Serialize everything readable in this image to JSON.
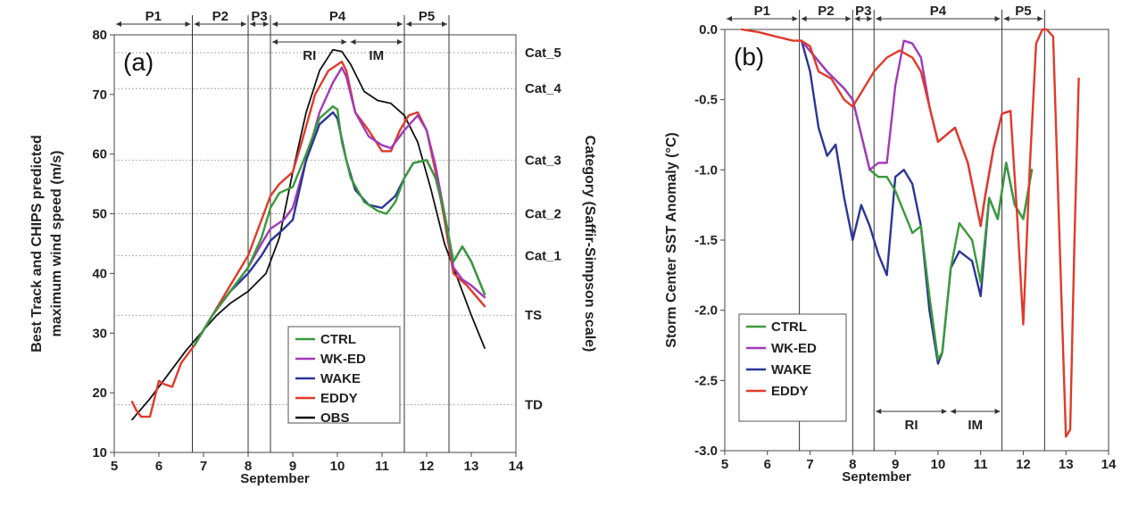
{
  "colors": {
    "CTRL": "#3a9a3a",
    "WK-ED": "#a23ab8",
    "WAKE": "#2c3596",
    "EDDY": "#e03a2a",
    "OBS": "#111111"
  },
  "chart_data": [
    {
      "type": "line",
      "panel_label": "(a)",
      "xlabel": "September",
      "ylabel": "Best Track and CHIPS predicted maximum wind speed (m/s)",
      "ylabel_lines": [
        "Best Track and CHIPS predicted",
        "maximum wind speed (m/s)"
      ],
      "right_label": "Category (Saffir-Simpson scale)",
      "xlim": [
        5,
        14
      ],
      "ylim": [
        10,
        80
      ],
      "xticks": [
        "5",
        "6",
        "7",
        "8",
        "9",
        "10",
        "11",
        "12",
        "13",
        "14"
      ],
      "yticks": [
        "10",
        "20",
        "30",
        "40",
        "50",
        "60",
        "70",
        "80"
      ],
      "categories": [
        {
          "label": "TD",
          "y": 18
        },
        {
          "label": "TS",
          "y": 33
        },
        {
          "label": "Cat_1",
          "y": 43
        },
        {
          "label": "Cat_2",
          "y": 50
        },
        {
          "label": "Cat_3",
          "y": 59
        },
        {
          "label": "Cat_4",
          "y": 71
        },
        {
          "label": "Cat_5",
          "y": 77
        }
      ],
      "phase_lines": [
        6.75,
        8.0,
        8.5,
        11.5,
        12.5
      ],
      "phases": [
        {
          "label": "P1",
          "start": 5.0,
          "end": 6.75
        },
        {
          "label": "P2",
          "start": 6.75,
          "end": 8.0
        },
        {
          "label": "P3",
          "start": 8.0,
          "end": 8.5
        },
        {
          "label": "P4",
          "start": 8.5,
          "end": 11.5
        },
        {
          "label": "P5",
          "start": 11.5,
          "end": 12.5
        }
      ],
      "subphases": [
        {
          "label": "RI",
          "start": 8.5,
          "end": 10.25
        },
        {
          "label": "IM",
          "start": 10.25,
          "end": 11.5
        }
      ],
      "legend": [
        "CTRL",
        "WK-ED",
        "WAKE",
        "EDDY",
        "OBS"
      ],
      "series": [
        {
          "name": "OBS",
          "x": [
            5.4,
            5.8,
            6.2,
            6.6,
            7.0,
            7.3,
            7.6,
            8.0,
            8.4,
            8.7,
            9.0,
            9.3,
            9.6,
            9.9,
            10.1,
            10.3,
            10.6,
            10.9,
            11.2,
            11.5,
            11.8,
            12.1,
            12.4,
            12.7,
            13.0,
            13.3
          ],
          "values": [
            15.5,
            19,
            23,
            27,
            30.5,
            33,
            35,
            37,
            40,
            46,
            57,
            67,
            74,
            77.5,
            77.2,
            75,
            70.5,
            69,
            68.5,
            66.5,
            62,
            54,
            45,
            39,
            33,
            27.5
          ]
        },
        {
          "name": "EDDY",
          "x": [
            5.4,
            5.5,
            5.6,
            5.8,
            6.0,
            6.1,
            6.3,
            6.5,
            6.8,
            7.2,
            7.6,
            8.0,
            8.3,
            8.5,
            8.7,
            9.0,
            9.2,
            9.5,
            9.8,
            10.1,
            10.2,
            10.4,
            10.7,
            11.0,
            11.2,
            11.4,
            11.6,
            11.8,
            12.0,
            12.2,
            12.4,
            12.6,
            12.9,
            13.3
          ],
          "values": [
            18.5,
            17,
            16,
            16,
            22,
            21.5,
            21,
            25,
            28,
            33,
            38,
            43,
            49,
            53,
            55,
            57,
            62,
            70,
            74,
            75.5,
            74,
            67,
            64,
            60.5,
            60.5,
            64,
            66.5,
            67,
            64,
            57,
            49,
            40,
            38,
            34.5
          ]
        },
        {
          "name": "WK-ED",
          "x": [
            6.8,
            7.2,
            7.6,
            8.0,
            8.3,
            8.5,
            8.8,
            9.0,
            9.3,
            9.6,
            9.9,
            10.1,
            10.2,
            10.4,
            10.7,
            11.0,
            11.2,
            11.5,
            11.8,
            12.0,
            12.2,
            12.4,
            12.6,
            12.8,
            13.0,
            13.3
          ],
          "values": [
            28,
            33,
            37,
            41,
            45,
            47.5,
            49,
            51,
            59,
            67,
            72,
            74.5,
            73,
            67,
            63,
            61.5,
            61,
            64,
            66.5,
            64,
            58,
            50,
            41,
            39,
            38,
            36
          ]
        },
        {
          "name": "WAKE",
          "x": [
            6.8,
            7.2,
            7.6,
            8.0,
            8.3,
            8.5,
            8.8,
            9.0,
            9.3,
            9.6,
            9.9,
            10.0,
            10.2,
            10.4,
            10.7,
            11.0,
            11.3,
            11.5,
            11.7,
            12.0,
            12.2,
            12.4,
            12.6,
            12.8,
            13.0,
            13.3
          ],
          "values": [
            28,
            33,
            37,
            40,
            43,
            45.5,
            47.5,
            49,
            59,
            65,
            67,
            66,
            59,
            54,
            51.5,
            51,
            53,
            56,
            58.5,
            59,
            56,
            50,
            42,
            44.5,
            42,
            36.5
          ]
        },
        {
          "name": "CTRL",
          "x": [
            6.8,
            7.2,
            7.6,
            8.0,
            8.3,
            8.5,
            8.7,
            9.0,
            9.3,
            9.6,
            9.9,
            10.0,
            10.1,
            10.3,
            10.6,
            10.9,
            11.1,
            11.3,
            11.5,
            11.7,
            12.0,
            12.2,
            12.4,
            12.6,
            12.8,
            13.0,
            13.3
          ],
          "values": [
            28,
            33,
            37,
            41,
            46,
            51,
            53.5,
            54.5,
            60,
            66,
            68,
            67.5,
            62,
            56,
            52,
            50.5,
            50,
            52,
            56,
            58.5,
            59,
            56,
            50,
            42,
            44.5,
            42,
            36.5
          ]
        }
      ]
    },
    {
      "type": "line",
      "panel_label": "(b)",
      "xlabel": "September",
      "ylabel": "Storm Center SST Anomaly (°C)",
      "xlim": [
        5,
        14
      ],
      "ylim": [
        -3.0,
        0.0
      ],
      "xticks": [
        "5",
        "6",
        "7",
        "8",
        "9",
        "10",
        "11",
        "12",
        "13",
        "14"
      ],
      "yticks": [
        "0.0",
        "-0.5",
        "-1.0",
        "-1.5",
        "-2.0",
        "-2.5",
        "-3.0"
      ],
      "phase_lines": [
        6.75,
        8.0,
        8.5,
        11.5,
        12.5
      ],
      "phases": [
        {
          "label": "P1",
          "start": 5.0,
          "end": 6.75
        },
        {
          "label": "P2",
          "start": 6.75,
          "end": 8.0
        },
        {
          "label": "P3",
          "start": 8.0,
          "end": 8.5
        },
        {
          "label": "P4",
          "start": 8.5,
          "end": 11.5
        },
        {
          "label": "P5",
          "start": 11.5,
          "end": 12.5
        }
      ],
      "subphases": [
        {
          "label": "RI",
          "start": 8.5,
          "end": 10.25
        },
        {
          "label": "IM",
          "start": 10.25,
          "end": 11.5
        }
      ],
      "legend": [
        "CTRL",
        "WK-ED",
        "WAKE",
        "EDDY"
      ],
      "series": [
        {
          "name": "WAKE",
          "x": [
            6.8,
            7.0,
            7.2,
            7.4,
            7.6,
            7.8,
            8.0,
            8.2,
            8.4,
            8.6,
            8.8,
            9.0,
            9.2,
            9.4,
            9.6,
            9.8,
            10.0,
            10.1,
            10.3,
            10.5,
            10.8,
            11.0,
            11.2,
            11.4,
            11.6,
            11.8,
            12.0,
            12.2
          ],
          "values": [
            -0.08,
            -0.3,
            -0.7,
            -0.9,
            -0.82,
            -1.2,
            -1.5,
            -1.25,
            -1.4,
            -1.6,
            -1.75,
            -1.05,
            -1.0,
            -1.1,
            -1.4,
            -2.0,
            -2.38,
            -2.3,
            -1.7,
            -1.58,
            -1.65,
            -1.9,
            -1.2,
            -1.35,
            -0.95,
            -1.25,
            -1.35,
            -1.0
          ]
        },
        {
          "name": "CTRL",
          "x": [
            6.8,
            7.4,
            7.8,
            8.0,
            8.2,
            8.4,
            8.6,
            8.8,
            9.0,
            9.2,
            9.4,
            9.6,
            9.8,
            10.0,
            10.1,
            10.3,
            10.5,
            10.8,
            11.0,
            11.2,
            11.4,
            11.6,
            11.8,
            12.0,
            12.2
          ],
          "values": [
            -0.08,
            -0.3,
            -0.42,
            -0.5,
            -0.75,
            -1.0,
            -1.05,
            -1.05,
            -1.15,
            -1.3,
            -1.45,
            -1.4,
            -1.9,
            -2.35,
            -2.3,
            -1.7,
            -1.38,
            -1.5,
            -1.8,
            -1.2,
            -1.35,
            -0.95,
            -1.25,
            -1.35,
            -1.0
          ]
        },
        {
          "name": "WK-ED",
          "x": [
            6.8,
            7.4,
            7.8,
            8.0,
            8.2,
            8.4,
            8.6,
            8.8,
            9.0,
            9.2,
            9.4,
            9.6,
            9.8,
            10.0,
            10.2,
            10.4,
            10.7,
            11.0,
            11.1,
            11.3,
            11.5,
            11.7
          ],
          "values": [
            -0.08,
            -0.3,
            -0.42,
            -0.5,
            -0.75,
            -1.0,
            -0.95,
            -0.95,
            -0.4,
            -0.08,
            -0.1,
            -0.2,
            -0.55,
            -0.8,
            -0.75,
            -0.7,
            -0.95,
            -1.4,
            -1.2,
            -0.85,
            -0.6,
            -0.58
          ]
        },
        {
          "name": "EDDY",
          "x": [
            5.4,
            5.8,
            6.2,
            6.6,
            6.8,
            7.0,
            7.2,
            7.5,
            7.8,
            8.0,
            8.2,
            8.5,
            8.8,
            9.1,
            9.4,
            9.6,
            9.8,
            10.0,
            10.2,
            10.4,
            10.7,
            11.0,
            11.1,
            11.3,
            11.5,
            11.7,
            11.85,
            12.0,
            12.15,
            12.3,
            12.45,
            12.55,
            12.7,
            12.85,
            13.0,
            13.1,
            13.2,
            13.3
          ],
          "values": [
            0.0,
            -0.02,
            -0.05,
            -0.08,
            -0.08,
            -0.12,
            -0.3,
            -0.35,
            -0.5,
            -0.55,
            -0.45,
            -0.3,
            -0.2,
            -0.15,
            -0.2,
            -0.3,
            -0.55,
            -0.8,
            -0.75,
            -0.7,
            -0.95,
            -1.4,
            -1.2,
            -0.85,
            -0.6,
            -0.58,
            -1.3,
            -2.1,
            -1.0,
            -0.1,
            0.0,
            0.0,
            -0.05,
            -1.5,
            -2.9,
            -2.85,
            -1.5,
            -0.35
          ]
        }
      ]
    }
  ]
}
